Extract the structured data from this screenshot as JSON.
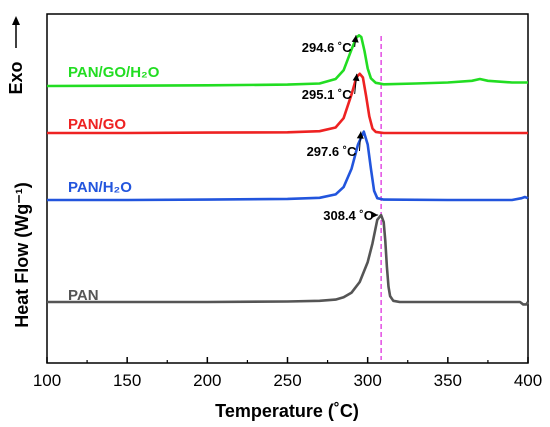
{
  "chart_data": {
    "type": "line",
    "xlabel": "Temperature (˚C)",
    "ylabel": "Heat Flow (Wg⁻¹)",
    "exo_label": "Exo",
    "xlim": [
      100,
      400
    ],
    "x_ticks": [
      "100",
      "150",
      "200",
      "250",
      "300",
      "350",
      "400"
    ],
    "y_ticks_labeled": false,
    "grid": false,
    "reference_line": {
      "x": 308.4,
      "color": "#e040e0",
      "style": "dashed"
    },
    "series": [
      {
        "name": "PAN/GO/H₂O",
        "color": "#22dd22",
        "peak": {
          "x": 294.6,
          "label": "294.6 ˚C"
        },
        "points": [
          [
            100,
            0
          ],
          [
            150,
            0.01
          ],
          [
            200,
            0.02
          ],
          [
            250,
            0.04
          ],
          [
            270,
            0.07
          ],
          [
            280,
            0.2
          ],
          [
            285,
            0.45
          ],
          [
            290,
            1.05
          ],
          [
            293,
            1.38
          ],
          [
            294.6,
            1.45
          ],
          [
            296,
            1.4
          ],
          [
            298,
            1.0
          ],
          [
            300,
            0.5
          ],
          [
            302,
            0.22
          ],
          [
            305,
            0.09
          ],
          [
            310,
            0.05
          ],
          [
            330,
            0.07
          ],
          [
            350,
            0.1
          ],
          [
            365,
            0.15
          ],
          [
            370,
            0.2
          ],
          [
            375,
            0.15
          ],
          [
            390,
            0.1
          ],
          [
            400,
            0.1
          ]
        ]
      },
      {
        "name": "PAN/GO",
        "color": "#ee2222",
        "peak": {
          "x": 295.1,
          "label": "295.1 ˚C"
        },
        "points": [
          [
            100,
            0
          ],
          [
            150,
            0
          ],
          [
            200,
            0.01
          ],
          [
            250,
            0.02
          ],
          [
            270,
            0.05
          ],
          [
            280,
            0.15
          ],
          [
            285,
            0.4
          ],
          [
            290,
            1.05
          ],
          [
            293,
            1.5
          ],
          [
            295.1,
            1.6
          ],
          [
            297,
            1.5
          ],
          [
            299,
            1.0
          ],
          [
            301,
            0.45
          ],
          [
            303,
            0.12
          ],
          [
            305,
            0.03
          ],
          [
            310,
            0
          ],
          [
            350,
            0
          ],
          [
            400,
            0
          ]
        ]
      },
      {
        "name": "PAN/H₂O",
        "color": "#2255dd",
        "peak": {
          "x": 297.6,
          "label": "297.6 ˚C"
        },
        "points": [
          [
            100,
            0
          ],
          [
            150,
            0
          ],
          [
            200,
            0.01
          ],
          [
            250,
            0.03
          ],
          [
            270,
            0.06
          ],
          [
            280,
            0.15
          ],
          [
            285,
            0.35
          ],
          [
            290,
            0.85
          ],
          [
            294,
            1.5
          ],
          [
            297.6,
            1.85
          ],
          [
            300,
            1.5
          ],
          [
            302,
            0.85
          ],
          [
            304,
            0.25
          ],
          [
            306,
            0.05
          ],
          [
            310,
            0.01
          ],
          [
            350,
            0
          ],
          [
            390,
            0
          ],
          [
            396,
            0.05
          ],
          [
            398,
            0.08
          ],
          [
            400,
            0.05
          ]
        ]
      },
      {
        "name": "PAN",
        "color": "#555555",
        "peak": {
          "x": 308.4,
          "label": "308.4 ˚C"
        },
        "points": [
          [
            100,
            0
          ],
          [
            150,
            0
          ],
          [
            200,
            0
          ],
          [
            250,
            0.02
          ],
          [
            270,
            0.05
          ],
          [
            280,
            0.1
          ],
          [
            285,
            0.2
          ],
          [
            290,
            0.4
          ],
          [
            295,
            0.85
          ],
          [
            300,
            1.7
          ],
          [
            303,
            2.5
          ],
          [
            306,
            3.5
          ],
          [
            308.4,
            3.7
          ],
          [
            310,
            3.4
          ],
          [
            311,
            2.6
          ],
          [
            312,
            1.5
          ],
          [
            313,
            0.65
          ],
          [
            314,
            0.25
          ],
          [
            316,
            0.05
          ],
          [
            320,
            0
          ],
          [
            350,
            0
          ],
          [
            395,
            0
          ],
          [
            397,
            -0.1
          ],
          [
            399,
            -0.1
          ],
          [
            400,
            0
          ]
        ]
      }
    ]
  }
}
